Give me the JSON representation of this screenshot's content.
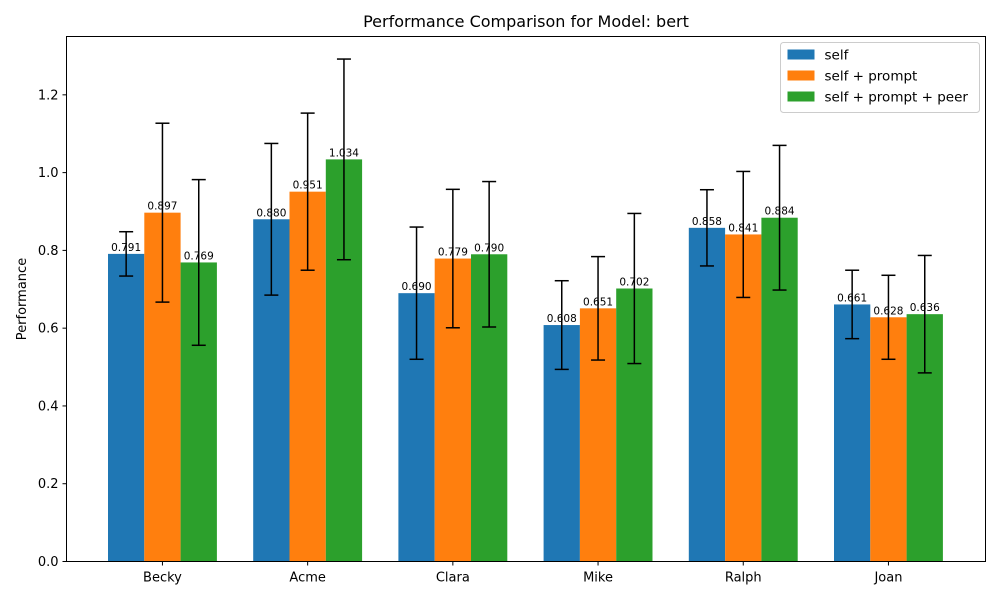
{
  "chart_data": {
    "type": "bar",
    "title": "Performance Comparison for Model: bert",
    "xlabel": "",
    "ylabel": "Performance",
    "ylim": [
      0,
      1.35
    ],
    "yticks": [
      "0.0",
      "0.2",
      "0.4",
      "0.6",
      "0.8",
      "1.0",
      "1.2"
    ],
    "categories": [
      "Becky",
      "Acme",
      "Clara",
      "Mike",
      "Ralph",
      "Joan"
    ],
    "grid": false,
    "legend_position": "top-right",
    "error_bars": true,
    "series": [
      {
        "name": "self",
        "color": "#1f77b4",
        "values": [
          0.791,
          0.88,
          0.69,
          0.608,
          0.858,
          0.661
        ],
        "labels": [
          "0.791",
          "0.880",
          "0.690",
          "0.608",
          "0.858",
          "0.661"
        ],
        "errors": [
          0.057,
          0.195,
          0.17,
          0.114,
          0.098,
          0.088
        ]
      },
      {
        "name": "self + prompt",
        "color": "#ff7f0e",
        "values": [
          0.897,
          0.951,
          0.779,
          0.651,
          0.841,
          0.628
        ],
        "labels": [
          "0.897",
          "0.951",
          "0.779",
          "0.651",
          "0.841",
          "0.628"
        ],
        "errors": [
          0.23,
          0.202,
          0.178,
          0.133,
          0.162,
          0.108
        ]
      },
      {
        "name": "self + prompt + peer",
        "color": "#2ca02c",
        "values": [
          0.769,
          1.034,
          0.79,
          0.702,
          0.884,
          0.636
        ],
        "labels": [
          "0.769",
          "1.034",
          "0.790",
          "0.702",
          "0.884",
          "0.636"
        ],
        "errors": [
          0.213,
          0.258,
          0.187,
          0.193,
          0.186,
          0.151
        ]
      }
    ]
  }
}
